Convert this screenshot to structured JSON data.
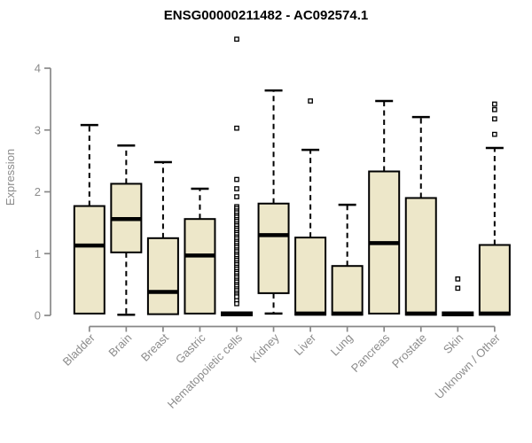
{
  "chart_data": {
    "type": "boxplot",
    "title": "ENSG00000211482 - AC092574.1",
    "ylabel": "Expression",
    "xlabel": "",
    "ylim": [
      0,
      4
    ],
    "yticks": [
      "0",
      "1",
      "2",
      "3",
      "4"
    ],
    "grid": false,
    "legend": false,
    "categories": [
      "Bladder",
      "Brain",
      "Breast",
      "Gastric",
      "Hematopoietic cells",
      "Kidney",
      "Liver",
      "Lung",
      "Pancreas",
      "Prostate",
      "Skin",
      "Unknown / Other"
    ],
    "series": [
      {
        "name": "Bladder",
        "low": 0.03,
        "q1": 0.03,
        "median": 1.13,
        "q3": 1.77,
        "high": 3.08,
        "outliers": []
      },
      {
        "name": "Brain",
        "low": 0.01,
        "q1": 1.02,
        "median": 1.56,
        "q3": 2.13,
        "high": 2.75,
        "outliers": []
      },
      {
        "name": "Breast",
        "low": 0.02,
        "q1": 0.02,
        "median": 0.38,
        "q3": 1.25,
        "high": 2.48,
        "outliers": []
      },
      {
        "name": "Gastric",
        "low": 0.03,
        "q1": 0.03,
        "median": 0.97,
        "q3": 1.56,
        "high": 2.05,
        "outliers": []
      },
      {
        "name": "Hematopoietic cells",
        "low": 0.0,
        "q1": 0.0,
        "median": 0.02,
        "q3": 0.05,
        "high": 0.05,
        "outliers": [
          4.47,
          3.03,
          2.2,
          2.05,
          1.92,
          1.76,
          1.73,
          1.69,
          1.66,
          1.62,
          1.59,
          1.55,
          1.52,
          1.48,
          1.45,
          1.41,
          1.38,
          1.34,
          1.31,
          1.27,
          1.24,
          1.2,
          1.17,
          1.13,
          1.1,
          1.06,
          1.03,
          0.99,
          0.96,
          0.92,
          0.89,
          0.85,
          0.82,
          0.78,
          0.75,
          0.71,
          0.68,
          0.64,
          0.61,
          0.57,
          0.54,
          0.5,
          0.47,
          0.43,
          0.4,
          0.36,
          0.33,
          0.3,
          0.24,
          0.19
        ]
      },
      {
        "name": "Kidney",
        "low": 0.03,
        "q1": 0.36,
        "median": 1.3,
        "q3": 1.81,
        "high": 3.64,
        "outliers": []
      },
      {
        "name": "Liver",
        "low": 0.01,
        "q1": 0.01,
        "median": 0.03,
        "q3": 1.26,
        "high": 2.68,
        "outliers": [
          3.47
        ]
      },
      {
        "name": "Lung",
        "low": 0.01,
        "q1": 0.01,
        "median": 0.03,
        "q3": 0.8,
        "high": 1.79,
        "outliers": []
      },
      {
        "name": "Pancreas",
        "low": 0.03,
        "q1": 0.03,
        "median": 1.17,
        "q3": 2.33,
        "high": 3.47,
        "outliers": []
      },
      {
        "name": "Prostate",
        "low": 0.01,
        "q1": 0.01,
        "median": 0.03,
        "q3": 1.9,
        "high": 3.21,
        "outliers": []
      },
      {
        "name": "Skin",
        "low": 0.0,
        "q1": 0.0,
        "median": 0.02,
        "q3": 0.05,
        "high": 0.05,
        "outliers": [
          0.59,
          0.44
        ]
      },
      {
        "name": "Unknown / Other",
        "low": 0.01,
        "q1": 0.01,
        "median": 0.03,
        "q3": 1.14,
        "high": 2.71,
        "outliers": [
          3.42,
          3.33,
          3.18,
          2.93
        ]
      }
    ]
  },
  "style": {
    "background": "#FFFFFF",
    "box_fill": "#EDE7C9",
    "box_stroke": "#000000",
    "median_color": "#000000",
    "whisker_color": "#000000",
    "outlier_stroke": "#000000",
    "outlier_fill": "#FFFFFF",
    "axis_color": "#888888",
    "tick_label_color": "#8C8C8C",
    "title_color": "#000000"
  }
}
